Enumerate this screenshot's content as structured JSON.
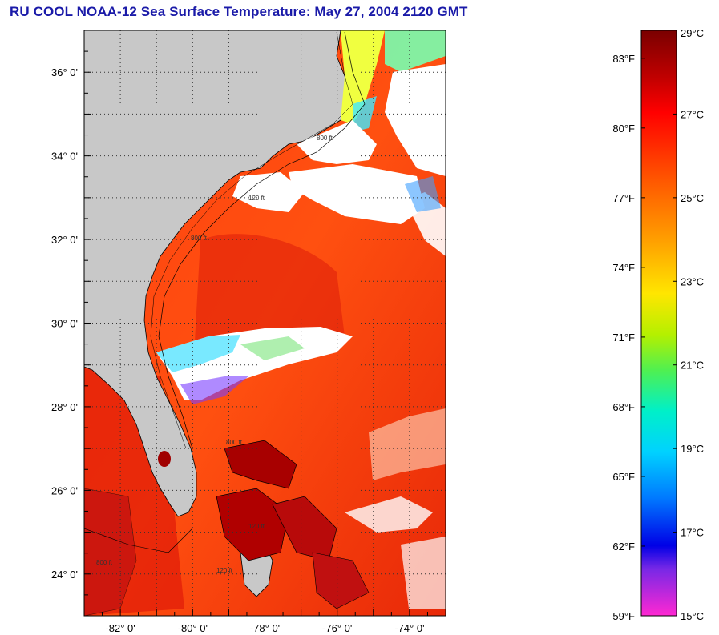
{
  "title": "RU COOL  NOAA-12  Sea Surface Temperature:  May 27, 2004 2120 GMT",
  "map": {
    "lat_labels": [
      {
        "value": 36,
        "label": "36° 0'"
      },
      {
        "value": 34,
        "label": "34° 0'"
      },
      {
        "value": 32,
        "label": "32° 0'"
      },
      {
        "value": 30,
        "label": "30° 0'"
      },
      {
        "value": 28,
        "label": "28° 0'"
      },
      {
        "value": 26,
        "label": "26° 0'"
      },
      {
        "value": 24,
        "label": "24° 0'"
      }
    ],
    "lon_labels": [
      {
        "value": -82,
        "label": "-82° 0'"
      },
      {
        "value": -80,
        "label": "-80° 0'"
      },
      {
        "value": -78,
        "label": "-78° 0'"
      },
      {
        "value": -76,
        "label": "-76° 0'"
      },
      {
        "value": -74,
        "label": "-74° 0'"
      }
    ],
    "lat_range": [
      23.0,
      37.0
    ],
    "lon_range": [
      -83.0,
      -73.0
    ],
    "contour_labels": [
      "800 ft",
      "120 ft",
      "800 ft",
      "120 ft",
      "800 ft",
      "800 ft",
      "120 ft"
    ],
    "colors": {
      "land": "#c8c8c8",
      "ocean_warm": "#ff3a0a",
      "ocean_hot": "#c80000",
      "cloud": "#ffffff",
      "grid": "#333333"
    }
  },
  "colorbar": {
    "fahrenheit": [
      {
        "value": 83,
        "label": "83°F"
      },
      {
        "value": 80,
        "label": "80°F"
      },
      {
        "value": 77,
        "label": "77°F"
      },
      {
        "value": 74,
        "label": "74°F"
      },
      {
        "value": 71,
        "label": "71°F"
      },
      {
        "value": 68,
        "label": "68°F"
      },
      {
        "value": 65,
        "label": "65°F"
      },
      {
        "value": 62,
        "label": "62°F"
      },
      {
        "value": 59,
        "label": "59°F"
      }
    ],
    "celsius": [
      {
        "value": 29,
        "label": "29°C"
      },
      {
        "value": 27,
        "label": "27°C"
      },
      {
        "value": 25,
        "label": "25°C"
      },
      {
        "value": 23,
        "label": "23°C"
      },
      {
        "value": 21,
        "label": "21°C"
      },
      {
        "value": 19,
        "label": "19°C"
      },
      {
        "value": 17,
        "label": "17°C"
      },
      {
        "value": 15,
        "label": "15°C"
      }
    ],
    "range_c": [
      15,
      29
    ]
  }
}
